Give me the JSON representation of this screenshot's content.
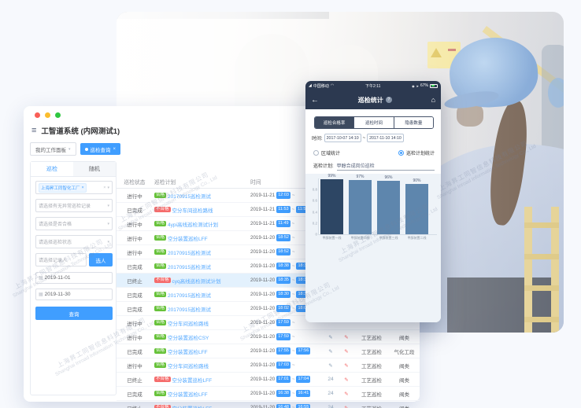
{
  "watermark": {
    "cn": "上海昇工同智信息科技有限公司",
    "en": "Shanghai Inroad Information Technology Co., Ltd"
  },
  "desktop": {
    "window_title": "工智道系统 (内网测试1)",
    "workspace_tab": "我的工作面板",
    "workspace_caret": "▾",
    "active_tab": "巡检查询",
    "active_tab_close": "×",
    "filter": {
      "tab_inspection": "巡检",
      "tab_random": "随机",
      "factory_tag": "上海昇工同智化工厂",
      "tag_close": "×",
      "clear_icon": "×",
      "caret_icon": "▾",
      "select_placeholders": [
        "请选择有无异常巡检记录",
        "请选择是否合格",
        "请选择巡检状态"
      ],
      "recorder_placeholder": "请选择记录人",
      "pick_person_button": "选人",
      "calendar_icon": "▦",
      "date_start": "2019-11-01",
      "date_end": "2019-11-30",
      "query_button": "查询"
    },
    "table": {
      "headers": [
        "巡检状态",
        "巡检计划",
        "时间",
        "",
        "",
        "",
        ""
      ],
      "tilde": "~",
      "edit_icon": "✎",
      "rows": [
        {
          "status": "进行中",
          "badge": "合格",
          "badge_type": "pass",
          "plan": "20170915巡检测试",
          "date": "2019-11-21",
          "start": "12:03",
          "end": "",
          "edit": "",
          "edit2": "",
          "type": "",
          "area": "",
          "highlight": false
        },
        {
          "status": "已完成",
          "badge": "不合格",
          "badge_type": "fail",
          "plan": "空分车间巡检路线",
          "date": "2019-11-21",
          "start": "11:53",
          "end": "11:58",
          "edit": "",
          "edit2": "",
          "type": "",
          "area": "",
          "highlight": false
        },
        {
          "status": "进行中",
          "badge": "合格",
          "badge_type": "pass",
          "plan": "4ypi高线巡检测试计划",
          "date": "2019-11-21",
          "start": "11:49",
          "end": "",
          "edit": "",
          "edit2": "",
          "type": "",
          "area": "",
          "highlight": false
        },
        {
          "status": "进行中",
          "badge": "合格",
          "badge_type": "pass",
          "plan": "空分装置巡检LFF",
          "date": "2019-11-20",
          "start": "18:52",
          "end": "",
          "edit": "",
          "edit2": "",
          "type": "",
          "area": "",
          "highlight": false
        },
        {
          "status": "进行中",
          "badge": "合格",
          "badge_type": "pass",
          "plan": "20170915巡检测试",
          "date": "2019-11-20",
          "start": "18:52",
          "end": "",
          "edit": "",
          "edit2": "",
          "type": "",
          "area": "",
          "highlight": false
        },
        {
          "status": "已完成",
          "badge": "合格",
          "badge_type": "pass",
          "plan": "20170915巡检测试",
          "date": "2019-11-20",
          "start": "18:38",
          "end": "18:39",
          "edit": "",
          "edit2": "",
          "type": "",
          "area": "",
          "highlight": false
        },
        {
          "status": "已终止",
          "badge": "不合格",
          "badge_type": "fail",
          "plan": "cyq高线巡检测试计划",
          "date": "2019-11-20",
          "start": "18:35",
          "end": "18:37",
          "edit": "",
          "edit2": "",
          "type": "",
          "area": "",
          "highlight": true
        },
        {
          "status": "已完成",
          "badge": "合格",
          "badge_type": "pass",
          "plan": "20170915巡检测试",
          "date": "2019-11-20",
          "start": "18:30",
          "end": "18:31",
          "edit": "",
          "edit2": "",
          "type": "",
          "area": "",
          "highlight": false
        },
        {
          "status": "已完成",
          "badge": "合格",
          "badge_type": "pass",
          "plan": "20170915巡检测试",
          "date": "2019-11-20",
          "start": "18:02",
          "end": "18:06",
          "edit": "",
          "edit2": "",
          "type": "",
          "area": "",
          "highlight": false
        },
        {
          "status": "进行中",
          "badge": "合格",
          "badge_type": "pass",
          "plan": "空分车间巡检路线",
          "date": "2019-11-20",
          "start": "17:59",
          "end": "",
          "edit": "",
          "edit2": "",
          "type": "",
          "area": "",
          "highlight": false
        },
        {
          "status": "进行中",
          "badge": "合格",
          "badge_type": "pass",
          "plan": "空分装置巡检CSY",
          "date": "2019-11-20",
          "start": "17:59",
          "end": "",
          "edit": "✎",
          "edit2": "✎",
          "type": "工艺巡检",
          "area": "阀类",
          "highlight": false
        },
        {
          "status": "已完成",
          "badge": "合格",
          "badge_type": "pass",
          "plan": "空分装置巡检LFF",
          "date": "2019-11-20",
          "start": "17:55",
          "end": "17:56",
          "edit": "✎",
          "edit2": "✎",
          "type": "工艺巡检",
          "area": "气化工段",
          "highlight": false
        },
        {
          "status": "进行中",
          "badge": "合格",
          "badge_type": "pass",
          "plan": "空分车间巡检路线",
          "date": "2019-11-20",
          "start": "17:03",
          "end": "",
          "edit": "✎",
          "edit2": "✎",
          "type": "工艺巡检",
          "area": "阀类",
          "highlight": false
        },
        {
          "status": "已终止",
          "badge": "不合格",
          "badge_type": "fail",
          "plan": "空分装置巡检LFF",
          "date": "2019-11-20",
          "start": "17:01",
          "end": "17:04",
          "edit": "24",
          "edit2": "✎",
          "type": "工艺巡检",
          "area": "阀类",
          "highlight": false
        },
        {
          "status": "已完成",
          "badge": "合格",
          "badge_type": "pass",
          "plan": "空分装置巡检LFF",
          "date": "2019-11-20",
          "start": "16:38",
          "end": "16:41",
          "edit": "24",
          "edit2": "✎",
          "type": "工艺巡检",
          "area": "阀类",
          "highlight": false
        },
        {
          "status": "已终止",
          "badge": "不合格",
          "badge_type": "fail",
          "plan": "空分装置巡检LFF",
          "date": "2019-11-20",
          "start": "16:48",
          "end": "16:55",
          "edit": "24",
          "edit2": "✎",
          "type": "工艺巡检",
          "area": "阀类",
          "highlight": false
        }
      ]
    }
  },
  "phone": {
    "status_bar": {
      "signal_icon": "◢",
      "carrier": "中国移动",
      "wifi_icon": "◠",
      "loc_icon": "◉",
      "share_icon": "➤",
      "time": "下午2:11",
      "battery": "67%"
    },
    "nav": {
      "back_icon": "←",
      "title": "巡检统计",
      "badge": "?",
      "home_icon": "⌂"
    },
    "segments": [
      {
        "label": "巡检合格率",
        "active": true
      },
      {
        "label": "巡检时间",
        "active": false
      },
      {
        "label": "隐患数量",
        "active": false
      }
    ],
    "time_label": "时间:",
    "time_start": "2017-10-07 14:10",
    "tilde": "~",
    "time_end": "2017-11-10 14:10",
    "radio_region": "区域统计",
    "radio_plan": "巡检计划统计",
    "plan_label": "巡检计划:",
    "plan_value": "甲醇合成岗位巡检"
  },
  "chart_data": {
    "type": "bar",
    "categories": [
      "甲醇装置一线",
      "甲醇装置四线",
      "甲醇装置三线",
      "甲醇装置二线"
    ],
    "values": [
      0.99,
      0.97,
      0.96,
      0.9
    ],
    "value_labels": [
      "99%",
      "97%",
      "96%",
      "90%"
    ],
    "title": "",
    "xlabel": "",
    "ylabel": "",
    "ylim": [
      0,
      1
    ],
    "yticks": [
      0.8,
      0.6,
      0.4,
      0.2,
      0
    ],
    "grid": false,
    "legend": false,
    "bar_color": "#5e86ad",
    "highlight_color": "#2d4664",
    "highlighted_index": 0
  }
}
